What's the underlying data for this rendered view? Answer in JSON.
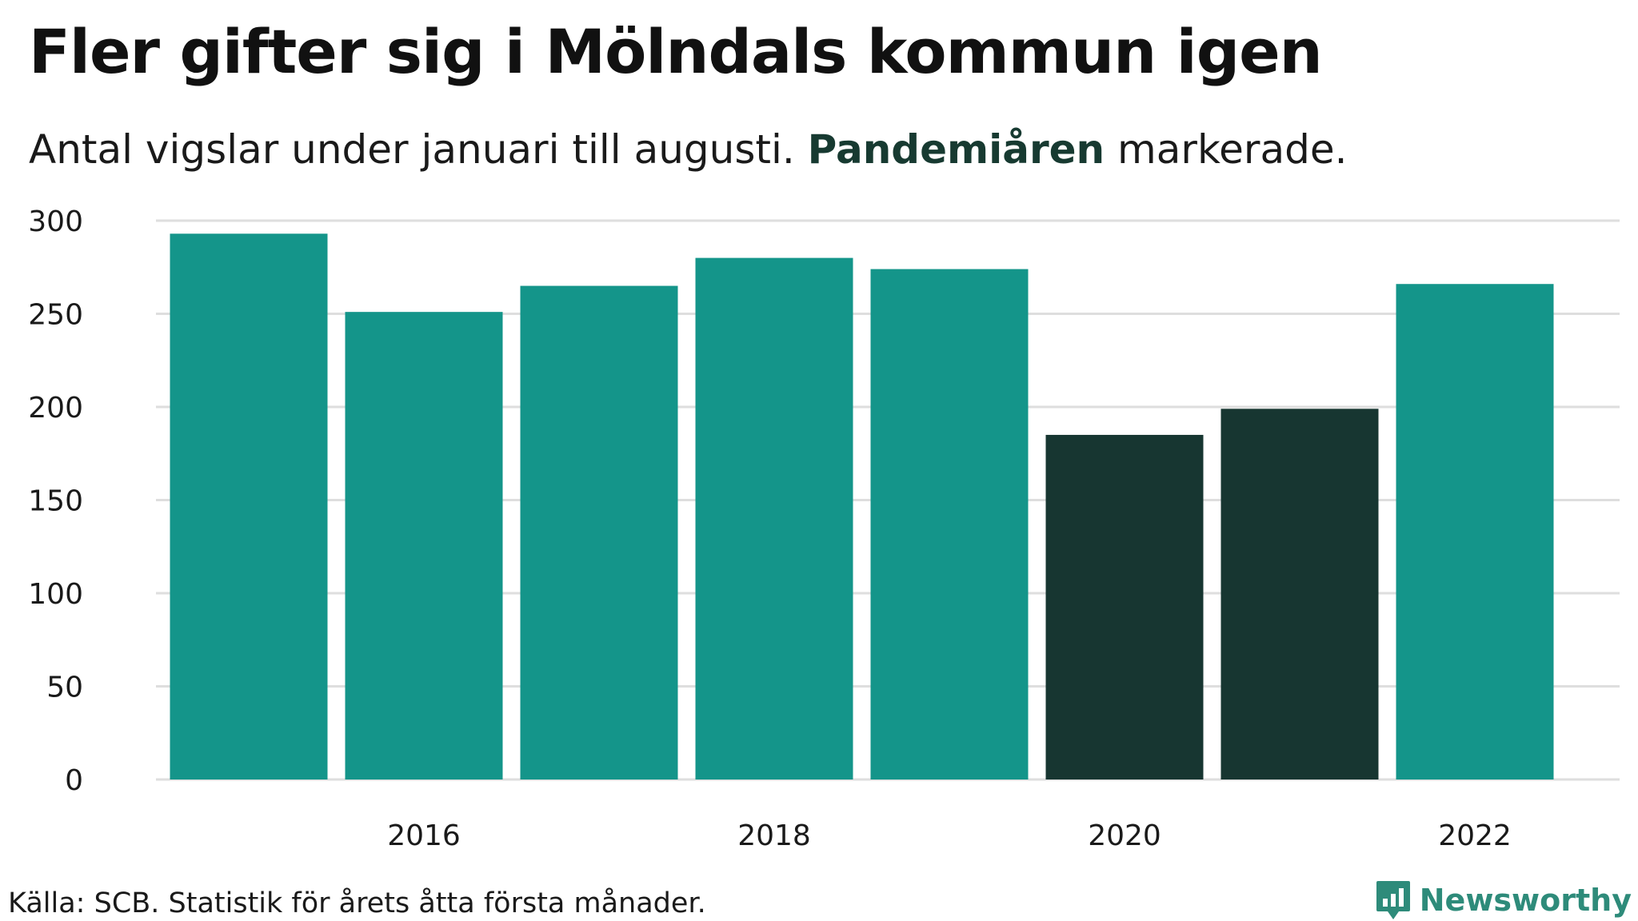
{
  "title": "Fler gifter sig i Mölndals kommun igen",
  "subtitle": {
    "before": "Antal vigslar under januari till augusti. ",
    "highlight": "Pandemiåren",
    "after": " markerade."
  },
  "source": "Källa: SCB. Statistik för årets åtta första månader.",
  "brand": "Newsworthy",
  "colors": {
    "bar": "#14958a",
    "pandemic_bar": "#173631",
    "grid": "#dedede",
    "brand": "#2e8b7a"
  },
  "chart_data": {
    "type": "bar",
    "categories": [
      "2015",
      "2016",
      "2017",
      "2018",
      "2019",
      "2020",
      "2021",
      "2022"
    ],
    "values": [
      293,
      251,
      265,
      280,
      274,
      185,
      199,
      266
    ],
    "highlighted": [
      "2020",
      "2021"
    ],
    "x_tick_labels": [
      "2016",
      "2018",
      "2020",
      "2022"
    ],
    "y_ticks": [
      0,
      50,
      100,
      150,
      200,
      250,
      300
    ],
    "ylim": [
      0,
      300
    ],
    "grid": true,
    "legend": "none"
  }
}
